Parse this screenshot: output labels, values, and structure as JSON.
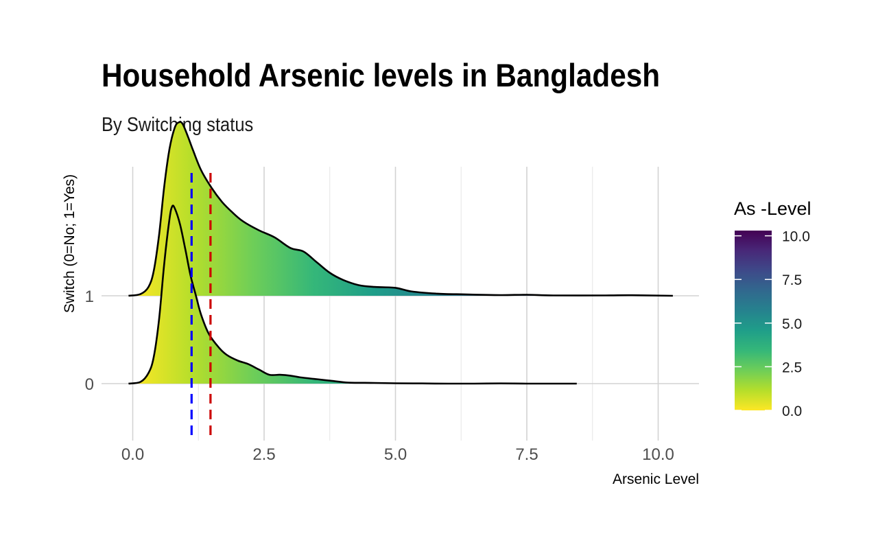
{
  "chart_data": {
    "type": "density-ridgeline",
    "title": "Household Arsenic levels in Bangladesh",
    "subtitle": "By Switching status",
    "xlabel": "Arsenic Level",
    "ylabel": "Switch (0=No; 1=Yes)",
    "x_ticks": [
      "0.0",
      "2.5",
      "5.0",
      "7.5",
      "10.0"
    ],
    "x_tick_values": [
      0,
      2.5,
      5,
      7.5,
      10
    ],
    "xlim": [
      -0.5,
      10.8
    ],
    "y_categories": [
      "0",
      "1"
    ],
    "grid": true,
    "series": [
      {
        "category": "0",
        "points": [
          [
            -0.08,
            0.0
          ],
          [
            0.15,
            0.01
          ],
          [
            0.3,
            0.06
          ],
          [
            0.4,
            0.15
          ],
          [
            0.5,
            0.36
          ],
          [
            0.6,
            0.68
          ],
          [
            0.7,
            0.93
          ],
          [
            0.75,
            1.0
          ],
          [
            0.8,
            0.99
          ],
          [
            0.9,
            0.9
          ],
          [
            1.0,
            0.76
          ],
          [
            1.1,
            0.61
          ],
          [
            1.2,
            0.5
          ],
          [
            1.3,
            0.39
          ],
          [
            1.45,
            0.28
          ],
          [
            1.65,
            0.2
          ],
          [
            1.8,
            0.16
          ],
          [
            2.0,
            0.13
          ],
          [
            2.2,
            0.11
          ],
          [
            2.4,
            0.08
          ],
          [
            2.6,
            0.05
          ],
          [
            2.8,
            0.05
          ],
          [
            3.0,
            0.045
          ],
          [
            3.2,
            0.035
          ],
          [
            3.5,
            0.025
          ],
          [
            3.8,
            0.015
          ],
          [
            4.1,
            0.006
          ],
          [
            4.6,
            0.004
          ],
          [
            5.0,
            0.002
          ],
          [
            5.5,
            0.001
          ],
          [
            6.0,
            0.0
          ],
          [
            6.5,
            0.0
          ],
          [
            7.0,
            0.001
          ],
          [
            7.5,
            0.0
          ],
          [
            8.0,
            0.0
          ],
          [
            8.45,
            0.0
          ]
        ]
      },
      {
        "category": "1",
        "points": [
          [
            -0.08,
            0.0
          ],
          [
            0.15,
            0.01
          ],
          [
            0.3,
            0.05
          ],
          [
            0.4,
            0.14
          ],
          [
            0.5,
            0.34
          ],
          [
            0.6,
            0.62
          ],
          [
            0.7,
            0.83
          ],
          [
            0.8,
            0.95
          ],
          [
            0.88,
            0.98
          ],
          [
            0.95,
            0.97
          ],
          [
            1.05,
            0.9
          ],
          [
            1.15,
            0.82
          ],
          [
            1.3,
            0.71
          ],
          [
            1.5,
            0.61
          ],
          [
            1.7,
            0.53
          ],
          [
            1.9,
            0.47
          ],
          [
            2.1,
            0.42
          ],
          [
            2.4,
            0.37
          ],
          [
            2.7,
            0.33
          ],
          [
            3.0,
            0.27
          ],
          [
            3.25,
            0.25
          ],
          [
            3.5,
            0.19
          ],
          [
            3.75,
            0.13
          ],
          [
            4.0,
            0.09
          ],
          [
            4.3,
            0.06
          ],
          [
            4.6,
            0.05
          ],
          [
            5.0,
            0.045
          ],
          [
            5.3,
            0.025
          ],
          [
            5.8,
            0.012
          ],
          [
            6.3,
            0.008
          ],
          [
            7.0,
            0.004
          ],
          [
            7.5,
            0.006
          ],
          [
            8.0,
            0.002
          ],
          [
            9.0,
            0.002
          ],
          [
            9.5,
            0.003
          ],
          [
            10.28,
            0.0
          ]
        ]
      }
    ],
    "vlines": [
      {
        "x": 1.12,
        "color": "#0000ff",
        "style": "dashed"
      },
      {
        "x": 1.48,
        "color": "#cc0000",
        "style": "dashed"
      }
    ],
    "colorbar": {
      "title": "As -Level",
      "ticks": [
        "0.0",
        "2.5",
        "5.0",
        "7.5",
        "10.0"
      ],
      "tick_values": [
        0,
        2.5,
        5,
        7.5,
        10
      ],
      "range": [
        0,
        10.3
      ],
      "palette": "viridis",
      "colors": [
        "#fde725",
        "#b5de2b",
        "#6ece58",
        "#35b779",
        "#1f9e89",
        "#26828e",
        "#31688e",
        "#3e4989",
        "#482878",
        "#440154"
      ]
    }
  }
}
